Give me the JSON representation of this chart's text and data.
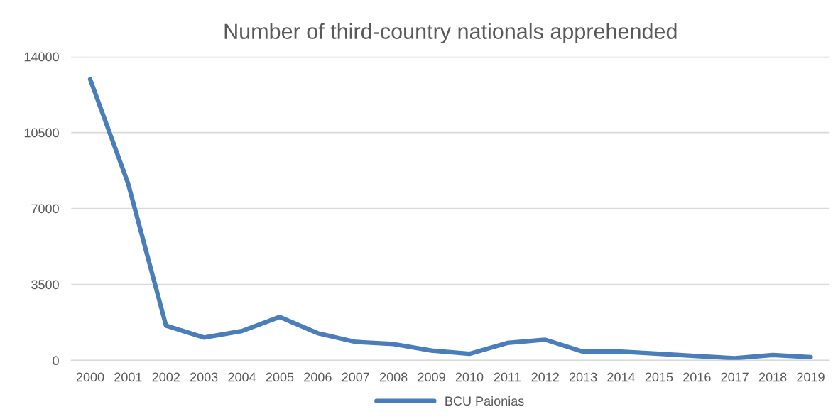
{
  "chart_data": {
    "type": "line",
    "title": "Number of third-country nationals apprehended",
    "categories": [
      "2000",
      "2001",
      "2002",
      "2003",
      "2004",
      "2005",
      "2006",
      "2007",
      "2008",
      "2009",
      "2010",
      "2011",
      "2012",
      "2013",
      "2014",
      "2015",
      "2016",
      "2017",
      "2018",
      "2019"
    ],
    "series": [
      {
        "name": "BCU Paionias",
        "color": "#4a7ebb",
        "values": [
          12950,
          8150,
          1600,
          1050,
          1350,
          2000,
          1250,
          850,
          750,
          450,
          300,
          800,
          950,
          400,
          400,
          300,
          200,
          100,
          250,
          150
        ]
      }
    ],
    "ylim": [
      0,
      14000
    ],
    "yticks": [
      0,
      3500,
      7000,
      10500,
      14000
    ],
    "grid": "y",
    "legend": "bottom",
    "marker": "none",
    "line_style": "solid"
  }
}
